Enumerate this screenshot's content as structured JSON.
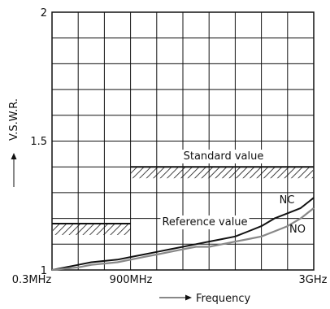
{
  "chart_data": {
    "type": "line",
    "title": "",
    "xlabel": "Frequency",
    "ylabel": "V.S.W.R.",
    "x_range": [
      "0.3MHz",
      "3GHz"
    ],
    "ylim": [
      1,
      2
    ],
    "x_ticks": [
      "0.3MHz",
      "900MHz",
      "3GHz"
    ],
    "y_ticks": [
      "1",
      "1.5",
      "2"
    ],
    "grid": true,
    "reference_value": {
      "label": "Reference value",
      "value": 1.18,
      "x_range": [
        "0.3MHz",
        "900MHz"
      ]
    },
    "standard_value": {
      "label": "Standard value",
      "value": 1.4,
      "x_range": [
        "900MHz",
        "3GHz"
      ]
    },
    "series": [
      {
        "name": "NC",
        "color": "#111111",
        "x_frac": [
          0,
          0.05,
          0.1,
          0.15,
          0.2,
          0.25,
          0.3,
          0.35,
          0.4,
          0.45,
          0.5,
          0.55,
          0.6,
          0.65,
          0.7,
          0.75,
          0.8,
          0.85,
          0.9,
          0.95,
          1.0
        ],
        "values": [
          1.0,
          1.01,
          1.02,
          1.03,
          1.035,
          1.04,
          1.05,
          1.06,
          1.07,
          1.08,
          1.09,
          1.1,
          1.11,
          1.12,
          1.13,
          1.15,
          1.17,
          1.2,
          1.22,
          1.24,
          1.28
        ]
      },
      {
        "name": "NO",
        "color": "#888888",
        "x_frac": [
          0,
          0.05,
          0.1,
          0.15,
          0.2,
          0.25,
          0.3,
          0.35,
          0.4,
          0.45,
          0.5,
          0.55,
          0.6,
          0.65,
          0.7,
          0.75,
          0.8,
          0.85,
          0.9,
          0.95,
          1.0
        ],
        "values": [
          1.0,
          1.005,
          1.01,
          1.02,
          1.025,
          1.03,
          1.04,
          1.05,
          1.06,
          1.07,
          1.08,
          1.09,
          1.09,
          1.1,
          1.11,
          1.12,
          1.13,
          1.15,
          1.17,
          1.2,
          1.24
        ]
      }
    ]
  }
}
